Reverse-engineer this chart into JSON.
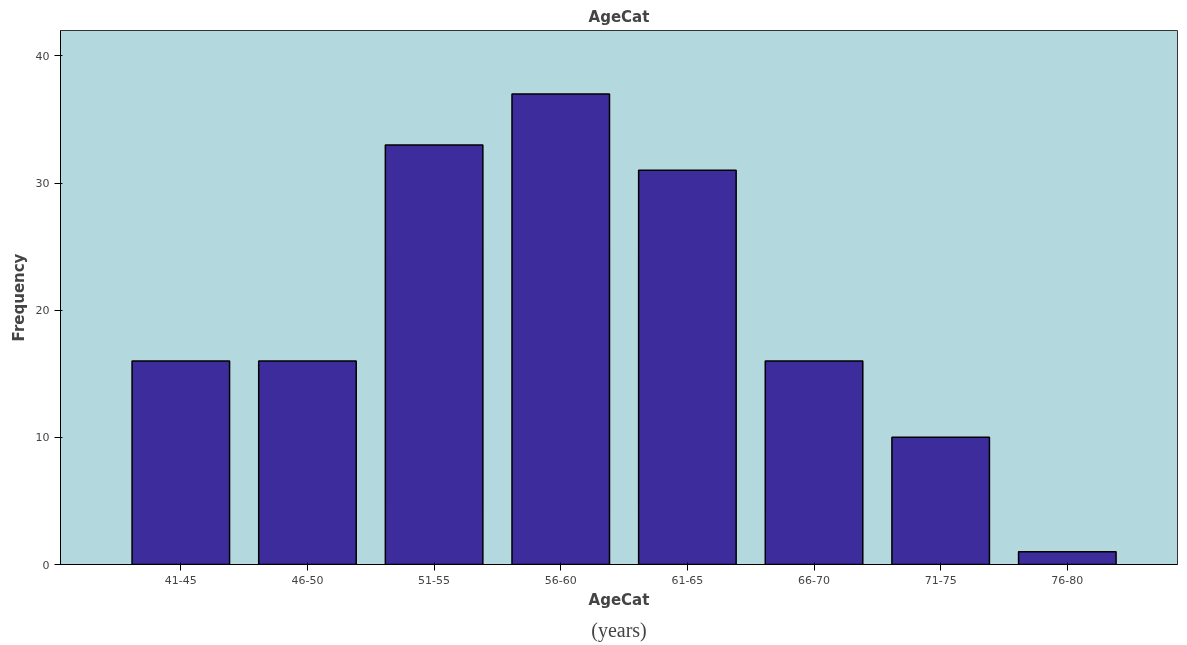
{
  "chart_data": {
    "type": "bar",
    "title": "AgeCat",
    "xlabel": "AgeCat",
    "ylabel": "Frequency",
    "categories": [
      "41-45",
      "46-50",
      "51-55",
      "56-60",
      "61-65",
      "66-70",
      "71-75",
      "76-80"
    ],
    "values": [
      16,
      16,
      33,
      37,
      31,
      16,
      10,
      1
    ],
    "color": "#3d2c9c",
    "ylim": [
      0,
      42
    ],
    "yticks": [
      0,
      10,
      20,
      30,
      40
    ],
    "grid": false,
    "annotations": [
      "(years)"
    ]
  }
}
